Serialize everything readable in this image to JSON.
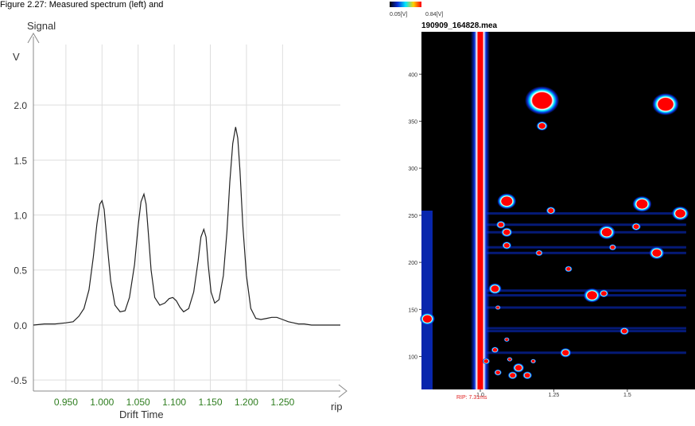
{
  "caption": "Figure 2.27: Measured spectrum (left) and",
  "chart_data": [
    {
      "type": "line",
      "title": "",
      "ylabel_top": "Signal",
      "yunit": "V",
      "xlabel": "Drift Time",
      "xunit": "rip",
      "xlim": [
        0.905,
        1.33
      ],
      "ylim": [
        -0.6,
        2.55
      ],
      "xticks": [
        "0.950",
        "1.000",
        "1.050",
        "1.100",
        "1.150",
        "1.200",
        "1.250"
      ],
      "yticks": [
        "-0.5",
        "0.0",
        "0.5",
        "1.0",
        "1.5",
        "2.0"
      ],
      "grid": true,
      "series": [
        {
          "x": [
            0.905,
            0.92,
            0.935,
            0.95,
            0.96,
            0.968,
            0.975,
            0.982,
            0.988,
            0.993,
            0.997,
            1.0,
            1.003,
            1.007,
            1.012,
            1.018,
            1.025,
            1.032,
            1.038,
            1.045,
            1.05,
            1.054,
            1.058,
            1.061,
            1.064,
            1.068,
            1.073,
            1.08,
            1.087,
            1.093,
            1.098,
            1.103,
            1.108,
            1.113,
            1.12,
            1.127,
            1.133,
            1.137,
            1.141,
            1.144,
            1.147,
            1.151,
            1.156,
            1.162,
            1.168,
            1.173,
            1.177,
            1.181,
            1.185,
            1.188,
            1.191,
            1.195,
            1.2,
            1.206,
            1.213,
            1.22,
            1.228,
            1.235,
            1.242,
            1.25,
            1.258,
            1.265,
            1.272,
            1.28,
            1.29,
            1.3,
            1.31,
            1.32,
            1.33
          ],
          "y": [
            0.0,
            0.01,
            0.01,
            0.02,
            0.03,
            0.08,
            0.15,
            0.32,
            0.62,
            0.92,
            1.1,
            1.13,
            1.05,
            0.75,
            0.4,
            0.18,
            0.12,
            0.13,
            0.25,
            0.55,
            0.9,
            1.12,
            1.19,
            1.1,
            0.85,
            0.5,
            0.25,
            0.18,
            0.2,
            0.24,
            0.25,
            0.22,
            0.16,
            0.12,
            0.15,
            0.3,
            0.58,
            0.8,
            0.87,
            0.8,
            0.55,
            0.3,
            0.2,
            0.23,
            0.45,
            0.85,
            1.3,
            1.65,
            1.8,
            1.7,
            1.4,
            0.9,
            0.45,
            0.15,
            0.06,
            0.05,
            0.06,
            0.07,
            0.07,
            0.05,
            0.03,
            0.02,
            0.01,
            0.01,
            0.0,
            0.0,
            0.0,
            0.0,
            0.0
          ]
        }
      ]
    },
    {
      "type": "heatmap",
      "title": "190909_164828.mea",
      "colorbar_labels": [
        "0.05[V]",
        "0.84[V]"
      ],
      "yticks": [
        "100",
        "150",
        "200",
        "250",
        "300",
        "350",
        "400"
      ],
      "xticks": [
        "1.0",
        "1.25",
        "1.5"
      ],
      "xlim": [
        0.8,
        1.73
      ],
      "ylim": [
        65,
        445
      ],
      "rip_label": "RIP: 7.31ms",
      "colors": {
        "background": "#000000",
        "low": "#0a2fd8",
        "mid": "#00e8ff",
        "peak": "#ff0000"
      },
      "blobs": [
        {
          "x": 1.21,
          "y": 372,
          "r": 18
        },
        {
          "x": 1.21,
          "y": 345,
          "r": 6
        },
        {
          "x": 1.63,
          "y": 368,
          "r": 14
        },
        {
          "x": 1.09,
          "y": 265,
          "r": 10
        },
        {
          "x": 1.55,
          "y": 262,
          "r": 10
        },
        {
          "x": 1.68,
          "y": 252,
          "r": 9
        },
        {
          "x": 1.24,
          "y": 255,
          "r": 5
        },
        {
          "x": 1.43,
          "y": 232,
          "r": 9
        },
        {
          "x": 1.07,
          "y": 240,
          "r": 5
        },
        {
          "x": 1.09,
          "y": 232,
          "r": 6
        },
        {
          "x": 1.09,
          "y": 218,
          "r": 5
        },
        {
          "x": 1.2,
          "y": 210,
          "r": 4
        },
        {
          "x": 1.45,
          "y": 216,
          "r": 4
        },
        {
          "x": 1.6,
          "y": 210,
          "r": 8
        },
        {
          "x": 1.53,
          "y": 238,
          "r": 5
        },
        {
          "x": 1.38,
          "y": 165,
          "r": 9
        },
        {
          "x": 1.05,
          "y": 172,
          "r": 7
        },
        {
          "x": 1.42,
          "y": 167,
          "r": 5
        },
        {
          "x": 1.49,
          "y": 127,
          "r": 5
        },
        {
          "x": 1.29,
          "y": 104,
          "r": 6
        },
        {
          "x": 1.13,
          "y": 88,
          "r": 6
        },
        {
          "x": 1.11,
          "y": 80,
          "r": 5
        },
        {
          "x": 1.06,
          "y": 83,
          "r": 4
        },
        {
          "x": 1.16,
          "y": 80,
          "r": 5
        },
        {
          "x": 1.02,
          "y": 95,
          "r": 4
        },
        {
          "x": 1.05,
          "y": 107,
          "r": 4
        },
        {
          "x": 1.09,
          "y": 118,
          "r": 3
        },
        {
          "x": 1.1,
          "y": 97,
          "r": 3
        },
        {
          "x": 1.18,
          "y": 95,
          "r": 3
        },
        {
          "x": 1.06,
          "y": 152,
          "r": 3
        },
        {
          "x": 0.82,
          "y": 140,
          "r": 8
        },
        {
          "x": 1.3,
          "y": 193,
          "r": 4
        }
      ]
    }
  ]
}
